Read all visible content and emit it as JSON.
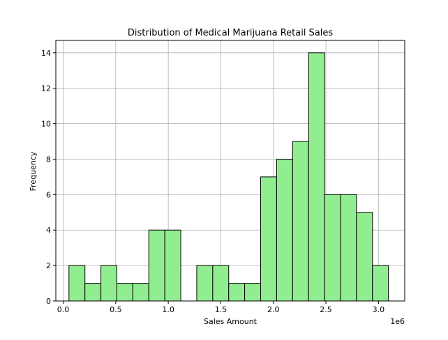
{
  "chart_data": {
    "type": "bar",
    "title": "Distribution of Medical Marijuana Retail Sales",
    "xlabel": "Sales Amount",
    "ylabel": "Frequency",
    "x_offset_label": "1e6",
    "xlim": [
      -0.07,
      3.25
    ],
    "ylim": [
      0,
      14.7
    ],
    "xticks": [
      0.0,
      0.5,
      1.0,
      1.5,
      2.0,
      2.5,
      3.0
    ],
    "xtick_labels": [
      "0.0",
      "0.5",
      "1.0",
      "1.5",
      "2.0",
      "2.5",
      "3.0"
    ],
    "yticks": [
      0,
      2,
      4,
      6,
      8,
      10,
      12,
      14
    ],
    "ytick_labels": [
      "0",
      "2",
      "4",
      "6",
      "8",
      "10",
      "12",
      "14"
    ],
    "grid": true,
    "bar_color": "#90EE90",
    "bin_edges": [
      0.055,
      0.207,
      0.359,
      0.511,
      0.663,
      0.815,
      0.967,
      1.119,
      1.271,
      1.423,
      1.575,
      1.727,
      1.879,
      2.031,
      2.183,
      2.335,
      2.487,
      2.639,
      2.791,
      2.943,
      3.095
    ],
    "counts": [
      2,
      1,
      2,
      1,
      1,
      4,
      4,
      0,
      2,
      2,
      1,
      1,
      7,
      8,
      9,
      14,
      6,
      6,
      5,
      2
    ]
  }
}
